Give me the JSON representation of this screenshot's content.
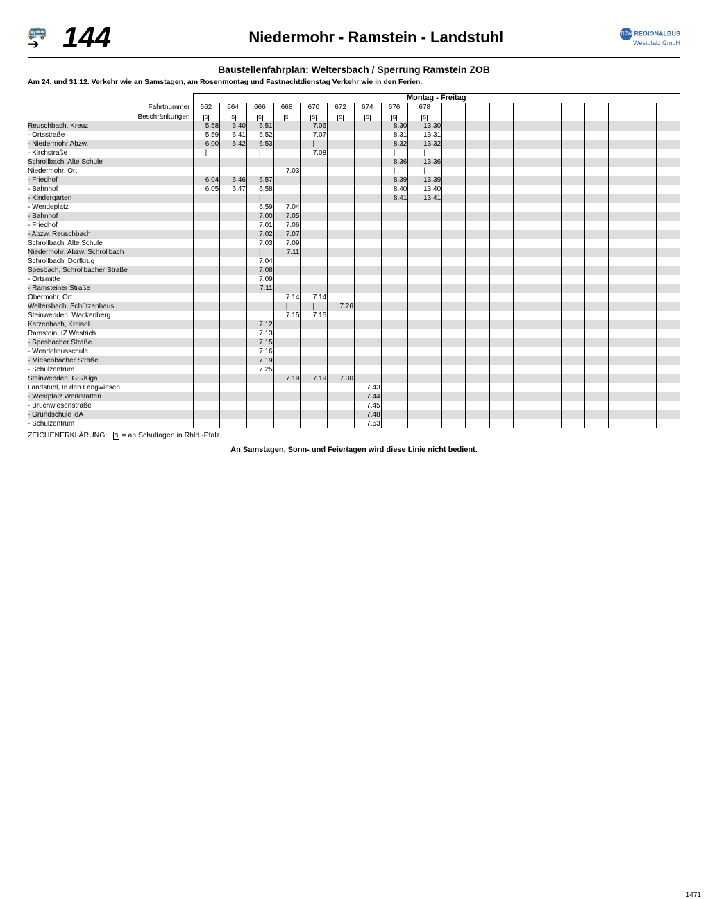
{
  "line_number": "144",
  "route_title": "Niedermohr - Ramstein - Landstuhl",
  "logo_text1": "REGIONALBUS",
  "logo_text2": "Westpfalz GmbH",
  "logo_abbr": "RBW",
  "subtitle": "Baustellenfahrplan: Weltersbach / Sperrung Ramstein ZOB",
  "note": "Am 24. und 31.12. Verkehr wie an Samstagen, am Rosenmontag und Fastnachtdienstag Verkehr wie in den Ferien.",
  "day_header": "Montag - Freitag",
  "row_labels": {
    "fahrtnummer": "Fahrtnummer",
    "beschraenkungen": "Beschränkungen"
  },
  "total_cols": 38,
  "trip_numbers": [
    "662",
    "664",
    "666",
    "668",
    "670",
    "672",
    "674",
    "676",
    "678"
  ],
  "restriction_symbol": "S",
  "restriction_cols": [
    0,
    1,
    2,
    3,
    4,
    5,
    6,
    7,
    8
  ],
  "stops": [
    {
      "name": "Reuschbach, Kreuz",
      "t": {
        "0": "5.58",
        "1": "6.40",
        "2": "6.51",
        "4": "7.06",
        "7": "8.30",
        "8": "13.30"
      }
    },
    {
      "name": "- Ortsstraße",
      "t": {
        "0": "5.59",
        "1": "6.41",
        "2": "6.52",
        "4": "7.07",
        "7": "8.31",
        "8": "13.31"
      }
    },
    {
      "name": "- Niedermohr Abzw.",
      "t": {
        "0": "6.00",
        "1": "6.42",
        "2": "6.53",
        "4": "|",
        "7": "8.32",
        "8": "13.32"
      }
    },
    {
      "name": "- Kirchstraße",
      "t": {
        "0": "|",
        "1": "|",
        "2": "|",
        "4": "7.08",
        "7": "|",
        "8": "|"
      }
    },
    {
      "name": "Schrollbach, Alte Schule",
      "t": {
        "7": "8.36",
        "8": "13.36"
      }
    },
    {
      "name": "Niedermohr, Ort",
      "t": {
        "3": "7.03",
        "7": "|",
        "8": "|"
      }
    },
    {
      "name": "- Friedhof",
      "t": {
        "0": "6.04",
        "1": "6.46",
        "2": "6.57",
        "7": "8.39",
        "8": "13.39"
      }
    },
    {
      "name": "- Bahnhof",
      "t": {
        "0": "6.05",
        "1": "6.47",
        "2": "6.58",
        "7": "8.40",
        "8": "13.40"
      }
    },
    {
      "name": "- Kindergarten",
      "t": {
        "2": "|",
        "7": "8.41",
        "8": "13.41"
      }
    },
    {
      "name": "- Wendeplatz",
      "t": {
        "2": "6.59",
        "3": "7.04"
      }
    },
    {
      "name": "- Bahnhof",
      "t": {
        "2": "7.00",
        "3": "7.05"
      }
    },
    {
      "name": "- Friedhof",
      "t": {
        "2": "7.01",
        "3": "7.06"
      }
    },
    {
      "name": "- Abzw. Reuschbach",
      "t": {
        "2": "7.02",
        "3": "7.07"
      }
    },
    {
      "name": "Schrollbach, Alte Schule",
      "t": {
        "2": "7.03",
        "3": "7.09"
      }
    },
    {
      "name": "Niedermohr, Abzw. Schrollbach",
      "t": {
        "2": "|",
        "3": "7.11"
      }
    },
    {
      "name": "Schrollbach, Dorfkrug",
      "t": {
        "2": "7.04"
      }
    },
    {
      "name": "Spesbach, Schrollbacher Straße",
      "t": {
        "2": "7.08"
      }
    },
    {
      "name": "- Ortsmitte",
      "t": {
        "2": "7.09"
      }
    },
    {
      "name": "- Ramsteiner Straße",
      "t": {
        "2": "7.11"
      }
    },
    {
      "name": "Obermohr, Ort",
      "t": {
        "3": "7.14",
        "4": "7.14"
      }
    },
    {
      "name": "Weltersbach, Schützenhaus",
      "t": {
        "3": "|",
        "4": "|",
        "5": "7.26"
      }
    },
    {
      "name": "Steinwenden, Wackenberg",
      "t": {
        "3": "7.15",
        "4": "7.15"
      }
    },
    {
      "name": "Katzenbach, Kreisel",
      "t": {
        "2": "7.12"
      }
    },
    {
      "name": "Ramstein, IZ Westrich",
      "t": {
        "2": "7.13"
      }
    },
    {
      "name": "- Spesbacher Straße",
      "t": {
        "2": "7.15"
      }
    },
    {
      "name": "- Wendelinusschule",
      "t": {
        "2": "7.16"
      }
    },
    {
      "name": "- Miesenbacher Straße",
      "t": {
        "2": "7.19"
      }
    },
    {
      "name": "- Schulzentrum",
      "t": {
        "2": "7.25"
      }
    },
    {
      "name": "Steinwenden, GS/Kiga",
      "t": {
        "3": "7.19",
        "4": "7.19",
        "5": "7.30"
      }
    },
    {
      "name": "Landstuhl, In den Langwiesen",
      "t": {
        "6": "7.43"
      }
    },
    {
      "name": "- Westpfalz Werkstätten",
      "t": {
        "6": "7.44"
      }
    },
    {
      "name": "- Bruchwiesenstraße",
      "t": {
        "6": "7.45"
      }
    },
    {
      "name": "- Grundschule idA",
      "t": {
        "6": "7.48"
      }
    },
    {
      "name": "- Schulzentrum",
      "t": {
        "6": "7.53"
      }
    }
  ],
  "legend_label": "ZEICHENERKLÄRUNG:",
  "legend_symbol": "S",
  "legend_text": "= an Schultagen in Rhld.-Pfalz",
  "footer_note": "An Samstagen, Sonn- und Feiertagen wird diese Linie nicht bedient.",
  "page_number": "1471"
}
